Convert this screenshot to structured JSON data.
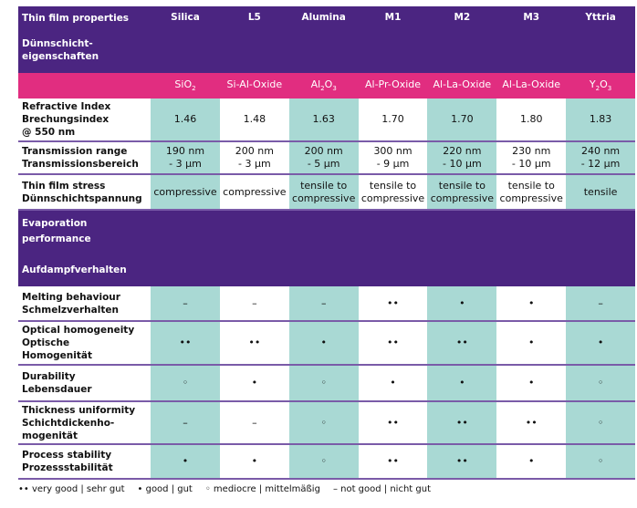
{
  "header": {
    "title_en": "Thin film properties",
    "title_de_1": "Dünnschicht-",
    "title_de_2": "eigenschaften",
    "columns": [
      "Silica",
      "L5",
      "Alumina",
      "M1",
      "M2",
      "M3",
      "Yttria"
    ]
  },
  "formulas": [
    {
      "base": "SiO",
      "sub": "2",
      "tail": ""
    },
    {
      "base": "Si-Al-Oxide",
      "sub": "",
      "tail": ""
    },
    {
      "base": "Al",
      "sub": "2",
      "tail": "O",
      "sub2": "3"
    },
    {
      "base": "Al-Pr-Oxide",
      "sub": "",
      "tail": ""
    },
    {
      "base": "Al-La-Oxide",
      "sub": "",
      "tail": ""
    },
    {
      "base": "Al-La-Oxide",
      "sub": "",
      "tail": ""
    },
    {
      "base": "Y",
      "sub": "2",
      "tail": "O",
      "sub2": "3"
    }
  ],
  "rows1": [
    {
      "label": [
        "Refractive Index",
        "Brechungsindex",
        "@ 550 nm"
      ],
      "values": [
        "1.46",
        "1.48",
        "1.63",
        "1.70",
        "1.70",
        "1.80",
        "1.83"
      ]
    },
    {
      "label": [
        "Transmission range",
        "Transmissionsbereich"
      ],
      "values": [
        [
          "190 nm",
          "- 3 µm"
        ],
        [
          "200 nm",
          "- 3 µm"
        ],
        [
          "200 nm",
          "- 5 µm"
        ],
        [
          "300 nm",
          "- 9 µm"
        ],
        [
          "220 nm",
          "- 10 µm"
        ],
        [
          "230 nm",
          "- 10 µm"
        ],
        [
          "240 nm",
          "- 12 µm"
        ]
      ]
    },
    {
      "label": [
        "Thin film stress",
        "Dünnschichtspannung"
      ],
      "values": [
        [
          "compressive"
        ],
        [
          "compressive"
        ],
        [
          "tensile to",
          "compressive"
        ],
        [
          "tensile to",
          "compressive"
        ],
        [
          "tensile to",
          "compressive"
        ],
        [
          "tensile to",
          "compressive"
        ],
        [
          "tensile"
        ]
      ]
    }
  ],
  "section": {
    "title_en_1": "Evaporation",
    "title_en_2": "performance",
    "title_de": "Aufdampfverhalten"
  },
  "rows2": [
    {
      "label": [
        "Melting behaviour",
        "Schmelzverhalten"
      ],
      "values": [
        "–",
        "–",
        "–",
        "••",
        "•",
        "•",
        "–"
      ]
    },
    {
      "label": [
        "Optical homogeneity",
        "Optische",
        "Homogenität"
      ],
      "values": [
        "••",
        "••",
        "•",
        "••",
        "••",
        "•",
        "•"
      ]
    },
    {
      "label": [
        "Durability",
        "Lebensdauer"
      ],
      "values": [
        "◦",
        "•",
        "◦",
        "•",
        "•",
        "•",
        "◦"
      ]
    },
    {
      "label": [
        "Thickness uniformity",
        "Schichtdickenho-",
        "mogenität"
      ],
      "values": [
        "–",
        "–",
        "◦",
        "••",
        "••",
        "••",
        "◦"
      ]
    },
    {
      "label": [
        "Process stability",
        "Prozessstabilität"
      ],
      "values": [
        "•",
        "•",
        "◦",
        "••",
        "••",
        "•",
        "◦"
      ]
    }
  ],
  "legend": [
    "•• very good | sehr gut",
    "• good | gut",
    "◦ mediocre | mittelmäßig",
    "– not good | nicht gut"
  ],
  "colors": {
    "purple": "#4b2581",
    "pink": "#e12d80",
    "teal": "#a9d9d4"
  }
}
